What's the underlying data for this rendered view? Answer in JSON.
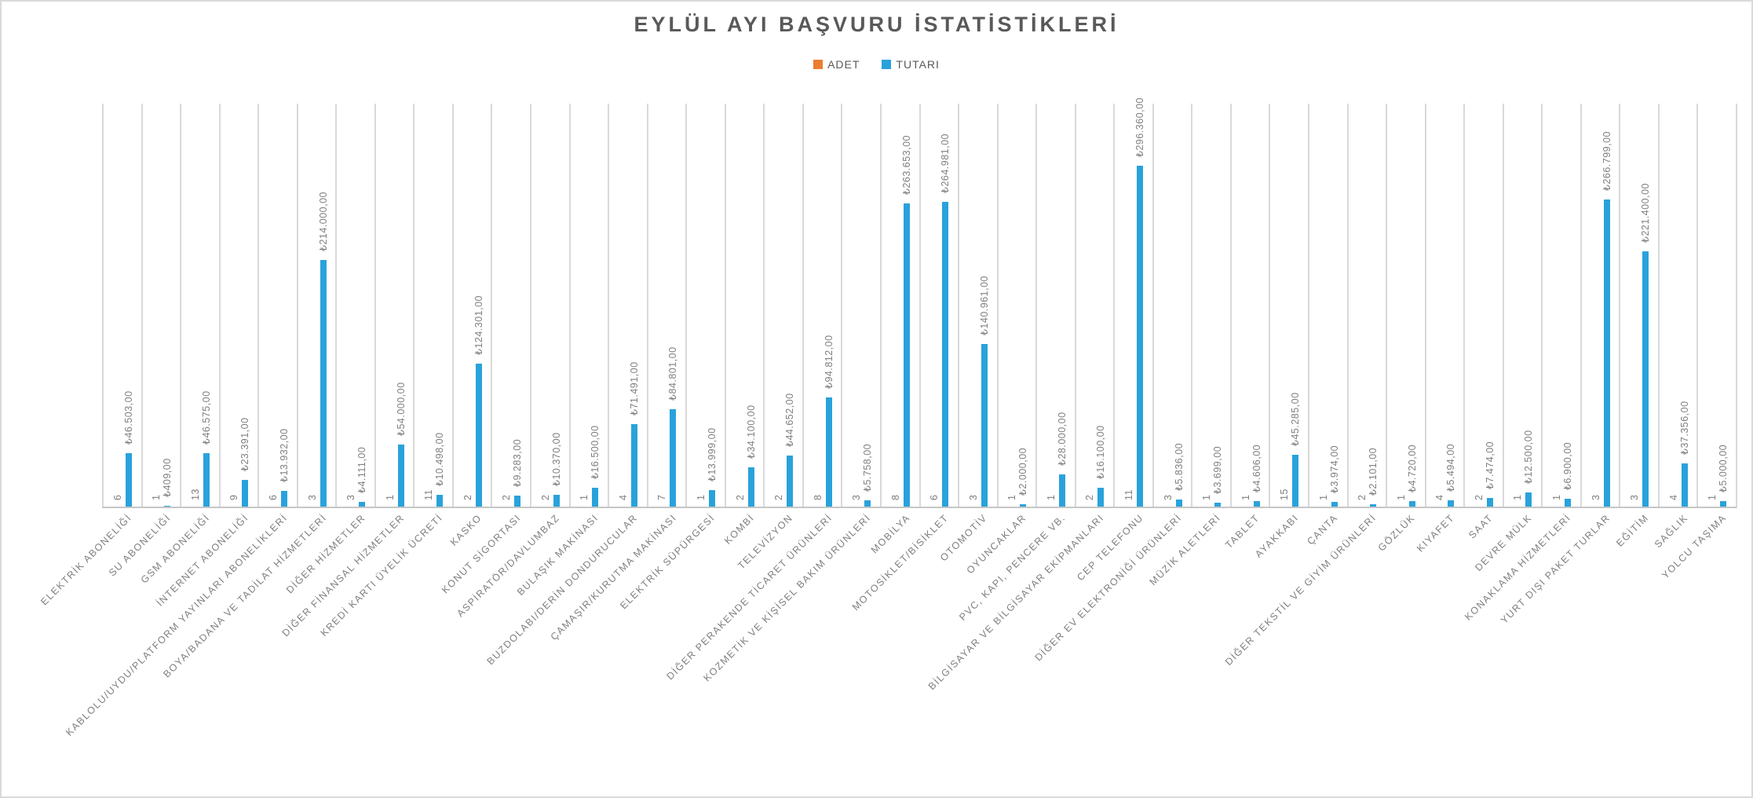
{
  "chart_data": {
    "type": "bar",
    "title": "EYLÜL AYI BAŞVURU İSTATİSTİKLERİ",
    "legend_position": "top-center",
    "grid": "vertical-category-boundaries",
    "category_label_rotation": -45,
    "data_label_rotation": -90,
    "value_axis": {
      "min": 0,
      "max": 350000,
      "labels_visible": false
    },
    "categories": [
      "ELEKTRİK ABONELİĞİ",
      "SU ABONELİĞİ",
      "GSM ABONELİĞİ",
      "İNTERNET ABONELİĞİ",
      "KABLOLU/UYDU/PLATFORM YAYINLARI ABONELİKLERİ",
      "BOYA/BADANA VE TADİLAT HİZMETLERİ",
      "DİĞER HİZMETLER",
      "DİĞER FİNANSAL HİZMETLER",
      "KREDİ KARTI ÜYELİK ÜCRETİ",
      "KASKO",
      "KONUT SİGORTASI",
      "ASPİRATÖR/DAVLUMBAZ",
      "BULAŞIK MAKİNASI",
      "BUZDOLABI/DERİN DONDURUCULAR",
      "ÇAMAŞIR/KURUTMA MAKİNASI",
      "ELEKTRİK SÜPÜRGESİ",
      "KOMBİ",
      "TELEVİZYON",
      "DİĞER PERAKENDE TİCARET ÜRÜNLERİ",
      "KOZMETİK VE KİŞİSEL BAKIM ÜRÜNLERİ",
      "MOBİLYA",
      "MOTOSİKLET/BİSİKLET",
      "OTOMOTİV",
      "OYUNCAKLAR",
      "PVC, KAPI, PENCERE VB.",
      "BİLGİSAYAR VE BİLGİSAYAR EKİPMANLARI",
      "CEP TELEFONU",
      "DİĞER EV ELEKTRONİĞİ ÜRÜNLERİ",
      "MÜZİK ALETLERİ",
      "TABLET",
      "AYAKKABI",
      "ÇANTA",
      "DİĞER TEKSTİL VE GİYİM ÜRÜNLERİ",
      "GÖZLÜK",
      "KIYAFET",
      "SAAT",
      "DEVRE MÜLK",
      "KONAKLAMA HİZMETLERİ",
      "YURT DIŞI PAKET TURLAR",
      "EĞİTİM",
      "SAĞLIK",
      "YOLCU TAŞIMA"
    ],
    "series": [
      {
        "name": "ADET",
        "color": "#ED7D31",
        "values": [
          6,
          1,
          13,
          9,
          6,
          3,
          3,
          1,
          11,
          2,
          2,
          2,
          1,
          4,
          7,
          1,
          2,
          2,
          8,
          3,
          8,
          6,
          3,
          1,
          1,
          2,
          11,
          3,
          1,
          1,
          15,
          1,
          2,
          1,
          4,
          2,
          1,
          1,
          3,
          3,
          4,
          1
        ],
        "labels": [
          "6",
          "1",
          "13",
          "9",
          "6",
          "3",
          "3",
          "1",
          "11",
          "2",
          "2",
          "2",
          "1",
          "4",
          "7",
          "1",
          "2",
          "2",
          "8",
          "3",
          "8",
          "6",
          "3",
          "1",
          "1",
          "2",
          "11",
          "3",
          "1",
          "1",
          "15",
          "1",
          "2",
          "1",
          "4",
          "2",
          "1",
          "1",
          "3",
          "3",
          "4",
          "1"
        ]
      },
      {
        "name": "TUTARI",
        "color": "#29A2DB",
        "values": [
          46503,
          409,
          46575,
          23391,
          13932,
          214000,
          4111,
          54000,
          10498,
          124301,
          9283,
          10370,
          16500,
          71491,
          84801,
          13999,
          34100,
          44652,
          94812,
          5758,
          263653,
          264981,
          140961,
          2000,
          28000,
          16100,
          296360,
          5836,
          3699,
          4606,
          45285,
          3974,
          2101,
          4720,
          5494,
          7474,
          12500,
          6900,
          266799,
          221400,
          37356,
          5000
        ],
        "labels": [
          "₺46.503,00",
          "₺409,00",
          "₺46.575,00",
          "₺23.391,00",
          "₺13.932,00",
          "₺214.000,00",
          "₺4.111,00",
          "₺54.000,00",
          "₺10.498,00",
          "₺124.301,00",
          "₺9.283,00",
          "₺10.370,00",
          "₺16.500,00",
          "₺71.491,00",
          "₺84.801,00",
          "₺13.999,00",
          "₺34.100,00",
          "₺44.652,00",
          "₺94.812,00",
          "₺5.758,00",
          "₺263.653,00",
          "₺264.981,00",
          "₺140.961,00",
          "₺2.000,00",
          "₺28.000,00",
          "₺16.100,00",
          "₺296.360,00",
          "₺5.836,00",
          "₺3.699,00",
          "₺4.606,00",
          "₺45.285,00",
          "₺3.974,00",
          "₺2.101,00",
          "₺4.720,00",
          "₺5.494,00",
          "₺7.474,00",
          "₺12.500,00",
          "₺6.900,00",
          "₺266.799,00",
          "₺221.400,00",
          "₺37.356,00",
          "₺5.000,00"
        ]
      }
    ]
  },
  "colors": {
    "title_text": "#595959",
    "label_text": "#7F7F7F",
    "gridline": "#D9D9D9",
    "axis_line": "#C6C6C6",
    "frame_border": "#D9D9D9",
    "background": "#FFFFFF"
  }
}
